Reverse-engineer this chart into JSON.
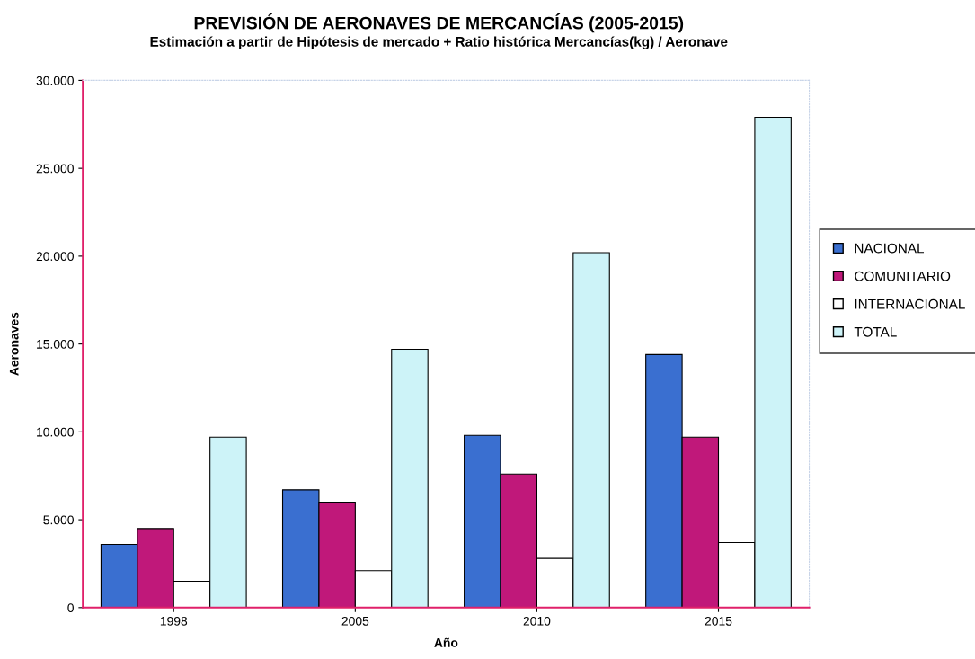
{
  "chart_data": {
    "type": "bar",
    "title": "PREVISIÓN DE AERONAVES DE MERCANCÍAS (2005-2015)",
    "subtitle": "Estimación a partir de Hipótesis de mercado + Ratio histórica Mercancías(kg) / Aeronave",
    "xlabel": "Año",
    "ylabel": "Aeronaves",
    "categories": [
      "1998",
      "2005",
      "2010",
      "2015"
    ],
    "series": [
      {
        "name": "NACIONAL",
        "color": "#3a6fd0",
        "values": [
          3600,
          6700,
          9800,
          14400
        ]
      },
      {
        "name": "COMUNITARIO",
        "color": "#c0187a",
        "values": [
          4500,
          6000,
          7600,
          9700
        ]
      },
      {
        "name": "INTERNACIONAL",
        "color": "#ffffff",
        "values": [
          1500,
          2100,
          2800,
          3700
        ]
      },
      {
        "name": "TOTAL",
        "color": "#cdf3f8",
        "values": [
          9700,
          14700,
          20200,
          27900
        ]
      }
    ],
    "ylim": [
      0,
      30000
    ],
    "yticks": [
      0,
      {
        "value": 5000,
        "label": "5.000"
      },
      {
        "value": 10000,
        "label": "10.000"
      },
      {
        "value": 15000,
        "label": "15.000"
      },
      {
        "value": 20000,
        "label": "20.000"
      },
      {
        "value": 25000,
        "label": "25.000"
      },
      {
        "value": 30000,
        "label": "30.000"
      }
    ],
    "grid": false,
    "legend": "right"
  }
}
